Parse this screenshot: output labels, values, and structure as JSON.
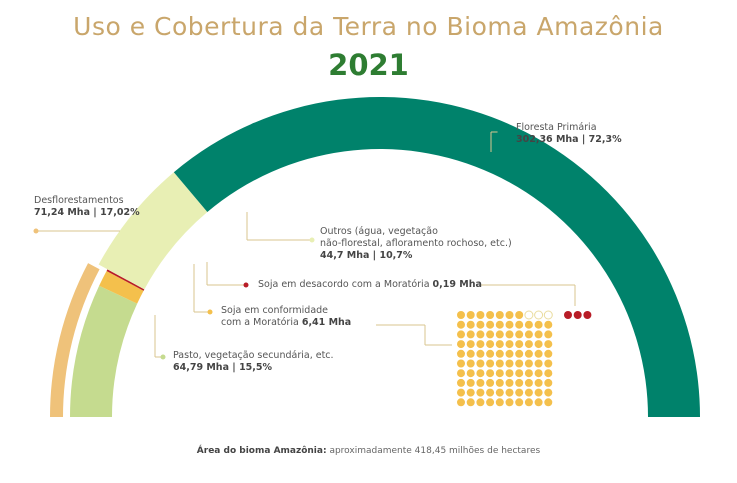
{
  "header": {
    "title": "Uso e Cobertura da Terra no Bioma Amazônia",
    "year": "2021"
  },
  "labels": {
    "floresta": {
      "name": "Floresta Primária",
      "value": "302,36 Mha | 72,3%"
    },
    "desflorestamentos": {
      "name": "Desflorestamentos",
      "value": "71,24 Mha | 17,02%"
    },
    "outros": {
      "line1": "Outros (água, vegetação",
      "line2": "não-florestal, afloramento rochoso, etc.)",
      "value": "44,7 Mha | 10,7%"
    },
    "soja_desacordo": {
      "text": "Soja em desacordo com a Moratória",
      "value": "0,19 Mha"
    },
    "soja_conformidade": {
      "line1": "Soja em conformidade",
      "line2": "com a Moratória",
      "value": "6,41 Mha"
    },
    "pasto": {
      "name": "Pasto, vegetação secundária, etc.",
      "value": "64,79 Mha | 15,5%"
    }
  },
  "footer": {
    "strong": "Área do bioma Amazônia:",
    "text": "aproximadamente 418,45 milhões de hectares"
  },
  "colors": {
    "floresta": "#00826b",
    "outros": "#e8efb4",
    "desflorestamentos": "#efc27a",
    "pasto": "#c5db8f",
    "soja_conformidade": "#f4c04c",
    "soja_desacordo": "#b81d27",
    "title": "#c9a66b",
    "year": "#2e7d32"
  },
  "chart_data": {
    "type": "pie",
    "title": "Uso e Cobertura da Terra no Bioma Amazônia",
    "subtitle": "2021",
    "unit": "Mha",
    "slices": [
      {
        "name": "Floresta Primária",
        "value": 302.36,
        "percent": 72.3
      },
      {
        "name": "Outros (água, vegetação não-florestal, afloramento rochoso, etc.)",
        "value": 44.7,
        "percent": 10.7
      },
      {
        "name": "Desflorestamentos",
        "value": 71.24,
        "percent": 17.02,
        "breakdown": [
          {
            "name": "Soja em desacordo com a Moratória",
            "value": 0.19
          },
          {
            "name": "Soja em conformidade com a Moratória",
            "value": 6.41
          },
          {
            "name": "Pasto, vegetação secundária, etc.",
            "value": 64.79,
            "percent": 15.5
          }
        ]
      }
    ],
    "dot_grid": {
      "total": 100,
      "red": 3,
      "hollow": 3
    }
  }
}
